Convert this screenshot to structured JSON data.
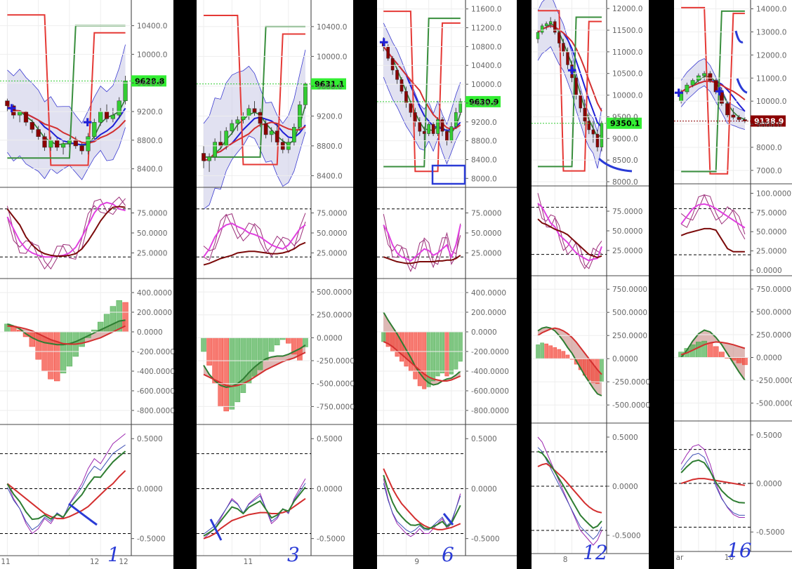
{
  "chart_data": [
    {
      "type": "candlestick-multipanel",
      "panel_id": 1,
      "price_axis": [
        "10400.0",
        "10000.0",
        "9600.0",
        "9200.0",
        "8800.0",
        "8400.0"
      ],
      "price_tag": "9628.8",
      "stoch_axis": [
        "75.0000",
        "50.0000",
        "25.0000"
      ],
      "macd_axis": [
        "400.0000",
        "200.0000",
        "0.0000",
        "-200.0000",
        "-400.0000",
        "-600.0000",
        "-800.0000"
      ],
      "osc_axis": [
        "0.5000",
        "0.0000",
        "-0.5000"
      ],
      "x_ticks": [
        "11",
        "12"
      ],
      "candles": [
        [
          9350,
          9380,
          9200,
          9280
        ],
        [
          9280,
          9300,
          9100,
          9150
        ],
        [
          9150,
          9220,
          9050,
          9200
        ],
        [
          9200,
          9210,
          9000,
          9050
        ],
        [
          9050,
          9090,
          8900,
          8950
        ],
        [
          8950,
          9000,
          8800,
          8850
        ],
        [
          8850,
          8900,
          8650,
          8700
        ],
        [
          8700,
          8850,
          8650,
          8800
        ],
        [
          8800,
          8830,
          8650,
          8700
        ],
        [
          8700,
          8780,
          8600,
          8750
        ],
        [
          8750,
          8820,
          8700,
          8800
        ],
        [
          8800,
          8850,
          8680,
          8720
        ],
        [
          8720,
          8760,
          8600,
          8650
        ],
        [
          8650,
          8900,
          8600,
          8850
        ],
        [
          8850,
          9100,
          8800,
          9050
        ],
        [
          9050,
          9250,
          9000,
          9200
        ],
        [
          9200,
          9300,
          9050,
          9100
        ],
        [
          9100,
          9250,
          9050,
          9150
        ],
        [
          9150,
          9400,
          9100,
          9350
        ],
        [
          9350,
          9700,
          9300,
          9628
        ]
      ],
      "macd_hist": [
        80,
        60,
        20,
        -50,
        -150,
        -280,
        -400,
        -480,
        -500,
        -420,
        -350,
        -250,
        -150,
        -60,
        20,
        100,
        180,
        260,
        320,
        300
      ],
      "macd_line": [
        80,
        60,
        30,
        -20,
        -60,
        -90,
        -110,
        -120,
        -130,
        -130,
        -120,
        -100,
        -70,
        -40,
        -10,
        20,
        50,
        80,
        110,
        120
      ],
      "signal_line": [
        60,
        55,
        45,
        30,
        10,
        -20,
        -50,
        -80,
        -100,
        -120,
        -125,
        -125,
        -115,
        -100,
        -80,
        -60,
        -30,
        0,
        30,
        60
      ],
      "stoch_k": [
        70,
        55,
        40,
        30,
        25,
        22,
        20,
        20,
        21,
        22,
        25,
        32,
        45,
        60,
        75,
        85,
        88,
        86,
        80,
        78
      ],
      "stoch_d": [
        80,
        70,
        60,
        45,
        35,
        28,
        24,
        22,
        21,
        21,
        22,
        24,
        30,
        40,
        52,
        65,
        75,
        82,
        83,
        82
      ],
      "osc_fast": [
        0.05,
        -0.1,
        -0.2,
        -0.35,
        -0.45,
        -0.4,
        -0.3,
        -0.35,
        -0.25,
        -0.3,
        -0.15,
        -0.05,
        0.05,
        0.2,
        0.3,
        0.25,
        0.35,
        0.45,
        0.5,
        0.55
      ],
      "osc_slow": [
        0.05,
        0.0,
        -0.05,
        -0.1,
        -0.15,
        -0.2,
        -0.25,
        -0.28,
        -0.3,
        -0.3,
        -0.28,
        -0.25,
        -0.22,
        -0.18,
        -0.12,
        -0.06,
        0.0,
        0.05,
        0.12,
        0.18
      ],
      "annotation": "1"
    },
    {
      "type": "candlestick-multipanel",
      "panel_id": 2,
      "price_axis": [
        "10400.0",
        "10000.0",
        "9600.0",
        "9200.0",
        "8800.0",
        "8400.0"
      ],
      "price_tag": "9631.1",
      "stoch_axis": [
        "75.0000",
        "50.0000",
        "25.0000"
      ],
      "macd_axis": [
        "500.0000",
        "250.0000",
        "0.0000",
        "-250.0000",
        "-500.0000",
        "-750.0000"
      ],
      "osc_axis": [
        "0.5000",
        "0.0000",
        "-0.5000"
      ],
      "x_ticks": [
        "11"
      ],
      "candles": [
        [
          8700,
          8800,
          8500,
          8600
        ],
        [
          8600,
          8700,
          8450,
          8650
        ],
        [
          8650,
          8900,
          8600,
          8850
        ],
        [
          8850,
          9000,
          8750,
          8800
        ],
        [
          8800,
          9050,
          8750,
          9000
        ],
        [
          9000,
          9150,
          8950,
          9100
        ],
        [
          9100,
          9200,
          9000,
          9150
        ],
        [
          9150,
          9250,
          9100,
          9200
        ],
        [
          9200,
          9350,
          9150,
          9300
        ],
        [
          9300,
          9400,
          9200,
          9250
        ],
        [
          9250,
          9300,
          9050,
          9100
        ],
        [
          9100,
          9150,
          8900,
          8950
        ],
        [
          8950,
          9050,
          8850,
          9000
        ],
        [
          9000,
          9100,
          8800,
          8850
        ],
        [
          8850,
          8900,
          8700,
          8750
        ],
        [
          8750,
          8900,
          8700,
          8850
        ],
        [
          8850,
          9100,
          8800,
          9050
        ],
        [
          9050,
          9400,
          9000,
          9350
        ],
        [
          9350,
          9650,
          9300,
          9631
        ]
      ],
      "macd_hist": [
        -150,
        -300,
        -500,
        -750,
        -800,
        -780,
        -700,
        -600,
        -500,
        -420,
        -350,
        -250,
        -150,
        -80,
        -20,
        -60,
        -180,
        -250,
        -100
      ],
      "macd_line": [
        -300,
        -400,
        -470,
        -520,
        -540,
        -530,
        -500,
        -450,
        -380,
        -320,
        -270,
        -230,
        -210,
        -200,
        -200,
        -180,
        -150,
        -120,
        -80
      ],
      "signal_line": [
        -400,
        -430,
        -460,
        -490,
        -520,
        -530,
        -520,
        -500,
        -470,
        -430,
        -390,
        -350,
        -320,
        -290,
        -260,
        -240,
        -220,
        -190,
        -160
      ],
      "stoch_k": [
        20,
        30,
        45,
        55,
        60,
        62,
        58,
        55,
        50,
        48,
        45,
        40,
        35,
        32,
        30,
        35,
        45,
        55,
        60
      ],
      "stoch_d": [
        10,
        12,
        15,
        18,
        20,
        22,
        25,
        26,
        27,
        27,
        26,
        25,
        24,
        24,
        25,
        27,
        30,
        35,
        38
      ],
      "osc_fast": [
        -0.5,
        -0.45,
        -0.4,
        -0.3,
        -0.2,
        -0.1,
        -0.15,
        -0.25,
        -0.15,
        -0.1,
        -0.05,
        -0.2,
        -0.35,
        -0.3,
        -0.2,
        -0.25,
        -0.1,
        0.0,
        0.1
      ],
      "osc_slow": [
        -0.5,
        -0.48,
        -0.45,
        -0.4,
        -0.36,
        -0.32,
        -0.3,
        -0.28,
        -0.26,
        -0.25,
        -0.24,
        -0.24,
        -0.25,
        -0.25,
        -0.24,
        -0.22,
        -0.18,
        -0.14,
        -0.1
      ],
      "annotation": "3"
    },
    {
      "type": "candlestick-multipanel",
      "panel_id": 3,
      "price_axis": [
        "11600.0",
        "11200.0",
        "10800.0",
        "10400.0",
        "10000.0",
        "9600.0",
        "9200.0",
        "8800.0",
        "8400.0",
        "8000.0"
      ],
      "price_tag": "9630.9",
      "stoch_axis": [
        "75.0000",
        "50.0000",
        "25.0000"
      ],
      "macd_axis": [
        "400.0000",
        "200.0000",
        "0.0000",
        "-200.0000",
        "-400.0000",
        "-600.0000",
        "-800.0000"
      ],
      "osc_axis": [
        "0.5000",
        "0.0000",
        "-0.5000"
      ],
      "x_ticks": [
        "9"
      ],
      "candles": [
        [
          10900,
          11000,
          10700,
          10800
        ],
        [
          10800,
          10850,
          10500,
          10550
        ],
        [
          10550,
          10600,
          10200,
          10300
        ],
        [
          10300,
          10350,
          10000,
          10100
        ],
        [
          10100,
          10150,
          9800,
          9850
        ],
        [
          9850,
          9950,
          9500,
          9600
        ],
        [
          9600,
          9650,
          9300,
          9400
        ],
        [
          9400,
          9500,
          9100,
          9200
        ],
        [
          9200,
          9300,
          8900,
          9000
        ],
        [
          9000,
          9100,
          8800,
          8950
        ],
        [
          8950,
          9200,
          8900,
          9150
        ],
        [
          9150,
          9200,
          8900,
          8950
        ],
        [
          8950,
          9300,
          8900,
          9250
        ],
        [
          9250,
          9300,
          8900,
          9000
        ],
        [
          9000,
          9050,
          8700,
          8800
        ],
        [
          8800,
          9200,
          8750,
          9100
        ],
        [
          9100,
          9500,
          9050,
          9400
        ],
        [
          9400,
          9700,
          9350,
          9630
        ]
      ],
      "macd_hist": [
        -100,
        -150,
        -200,
        -250,
        -300,
        -350,
        -400,
        -480,
        -550,
        -580,
        -560,
        -500,
        -450,
        -420,
        -450,
        -430,
        -380,
        -300
      ],
      "macd_line": [
        200,
        120,
        50,
        -20,
        -100,
        -180,
        -260,
        -350,
        -420,
        -480,
        -520,
        -540,
        -530,
        -500,
        -480,
        -470,
        -440,
        -400
      ],
      "signal_line": [
        -100,
        -120,
        -150,
        -190,
        -230,
        -270,
        -310,
        -350,
        -390,
        -430,
        -460,
        -480,
        -490,
        -500,
        -500,
        -490,
        -470,
        -450
      ],
      "stoch_k": [
        60,
        50,
        35,
        25,
        20,
        18,
        15,
        20,
        25,
        30,
        28,
        22,
        25,
        30,
        35,
        20,
        35,
        60
      ],
      "stoch_d": [
        20,
        18,
        16,
        14,
        13,
        12,
        12,
        13,
        14,
        14,
        14,
        14,
        15,
        15,
        16,
        16,
        18,
        22
      ],
      "osc_fast": [
        0.1,
        -0.1,
        -0.25,
        -0.35,
        -0.4,
        -0.45,
        -0.48,
        -0.45,
        -0.4,
        -0.45,
        -0.45,
        -0.4,
        -0.35,
        -0.3,
        -0.4,
        -0.35,
        -0.2,
        -0.05
      ],
      "osc_slow": [
        0.2,
        0.1,
        0.0,
        -0.08,
        -0.15,
        -0.2,
        -0.25,
        -0.3,
        -0.34,
        -0.37,
        -0.39,
        -0.4,
        -0.41,
        -0.41,
        -0.4,
        -0.39,
        -0.37,
        -0.35
      ],
      "annotation": "6"
    },
    {
      "type": "candlestick-multipanel",
      "panel_id": 4,
      "price_axis": [
        "12000.0",
        "11500.0",
        "11000.0",
        "10500.0",
        "10000.0",
        "9500.0",
        "9000.0",
        "8500.0",
        "8000.0"
      ],
      "price_tag": "9350.1",
      "stoch_axis": [
        "75.0000",
        "50.0000",
        "25.0000"
      ],
      "macd_axis": [
        "750.0000",
        "500.0000",
        "250.0000",
        "0.0000",
        "-250.0000",
        "-500.0000"
      ],
      "osc_axis": [
        "0.5000",
        "0.0000",
        "-0.5000"
      ],
      "x_ticks": [
        "8"
      ],
      "candles": [
        [
          11300,
          11500,
          11200,
          11450
        ],
        [
          11450,
          11650,
          11400,
          11600
        ],
        [
          11600,
          11700,
          11500,
          11650
        ],
        [
          11650,
          11800,
          11550,
          11700
        ],
        [
          11700,
          11750,
          11400,
          11450
        ],
        [
          11450,
          11500,
          11100,
          11200
        ],
        [
          11200,
          11300,
          10900,
          11000
        ],
        [
          11000,
          11100,
          10600,
          10700
        ],
        [
          10700,
          10800,
          10300,
          10400
        ],
        [
          10400,
          10500,
          9900,
          10000
        ],
        [
          10000,
          10100,
          9600,
          9700
        ],
        [
          9700,
          9900,
          9300,
          9400
        ],
        [
          9400,
          9600,
          9100,
          9200
        ],
        [
          9200,
          9400,
          8900,
          9100
        ],
        [
          9100,
          9200,
          8700,
          8800
        ],
        [
          8800,
          9400,
          8700,
          9350
        ]
      ],
      "macd_hist": [
        150,
        170,
        160,
        140,
        120,
        100,
        80,
        40,
        0,
        -60,
        -120,
        -180,
        -230,
        -260,
        -270,
        -250
      ],
      "macd_line": [
        300,
        330,
        340,
        330,
        300,
        250,
        190,
        120,
        60,
        -20,
        -100,
        -180,
        -250,
        -320,
        -380,
        -400
      ],
      "signal_line": [
        250,
        280,
        300,
        320,
        330,
        320,
        300,
        270,
        230,
        180,
        120,
        60,
        0,
        -60,
        -120,
        -170
      ],
      "stoch_k": [
        85,
        80,
        70,
        60,
        55,
        45,
        40,
        35,
        28,
        22,
        18,
        15,
        12,
        14,
        15,
        30
      ],
      "stoch_d": [
        65,
        60,
        58,
        55,
        52,
        50,
        48,
        45,
        40,
        35,
        30,
        25,
        20,
        18,
        16,
        18
      ],
      "osc_fast": [
        0.5,
        0.45,
        0.35,
        0.25,
        0.15,
        0.05,
        -0.05,
        -0.15,
        -0.25,
        -0.35,
        -0.45,
        -0.5,
        -0.55,
        -0.6,
        -0.55,
        -0.45
      ],
      "osc_slow": [
        0.2,
        0.22,
        0.23,
        0.2,
        0.16,
        0.12,
        0.08,
        0.03,
        -0.02,
        -0.07,
        -0.12,
        -0.17,
        -0.21,
        -0.24,
        -0.26,
        -0.27
      ],
      "annotation": "12"
    },
    {
      "type": "candlestick-multipanel",
      "panel_id": 5,
      "price_axis": [
        "14000.0",
        "13000.0",
        "12000.0",
        "11000.0",
        "10000.0",
        "9000.0",
        "8000.0",
        "7000.0"
      ],
      "price_tag": "9138.9",
      "stoch_axis": [
        "100.0000",
        "75.0000",
        "50.0000",
        "25.0000",
        "0.0000"
      ],
      "macd_axis": [
        "750.0000",
        "500.0000",
        "250.0000",
        "0.0000",
        "-250.0000",
        "-500.0000"
      ],
      "osc_axis": [
        "0.5000",
        "0.0000",
        "-0.5000"
      ],
      "x_ticks": [
        "ar",
        "10"
      ],
      "candles": [
        [
          10000,
          10500,
          9900,
          10400
        ],
        [
          10400,
          10800,
          10300,
          10700
        ],
        [
          10700,
          11000,
          10600,
          10900
        ],
        [
          10900,
          11200,
          10800,
          11100
        ],
        [
          11100,
          11300,
          10900,
          11200
        ],
        [
          11200,
          11300,
          10800,
          10900
        ],
        [
          10900,
          11000,
          10300,
          10400
        ],
        [
          10400,
          10600,
          9800,
          9900
        ],
        [
          9900,
          10000,
          9300,
          9400
        ],
        [
          9400,
          9700,
          9200,
          9300
        ],
        [
          9300,
          9400,
          9100,
          9200
        ],
        [
          9200,
          9300,
          9050,
          9139
        ]
      ],
      "macd_hist": [
        60,
        100,
        140,
        170,
        180,
        160,
        120,
        60,
        0,
        -30,
        -60,
        -80
      ],
      "macd_line": [
        0,
        80,
        180,
        260,
        300,
        280,
        220,
        140,
        40,
        -60,
        -160,
        -250
      ],
      "signal_line": [
        30,
        50,
        80,
        110,
        140,
        160,
        170,
        165,
        155,
        140,
        120,
        100
      ],
      "stoch_k": [
        60,
        70,
        80,
        85,
        86,
        84,
        80,
        75,
        70,
        65,
        60,
        55
      ],
      "stoch_d": [
        45,
        48,
        50,
        52,
        54,
        54,
        52,
        40,
        28,
        24,
        24,
        24
      ],
      "osc_fast": [
        0.2,
        0.3,
        0.38,
        0.4,
        0.35,
        0.2,
        0.0,
        -0.15,
        -0.25,
        -0.32,
        -0.35,
        -0.35
      ],
      "osc_slow": [
        0.0,
        0.02,
        0.04,
        0.05,
        0.05,
        0.04,
        0.03,
        0.02,
        0.01,
        0.0,
        -0.01,
        -0.02
      ],
      "annotation": "16"
    }
  ]
}
